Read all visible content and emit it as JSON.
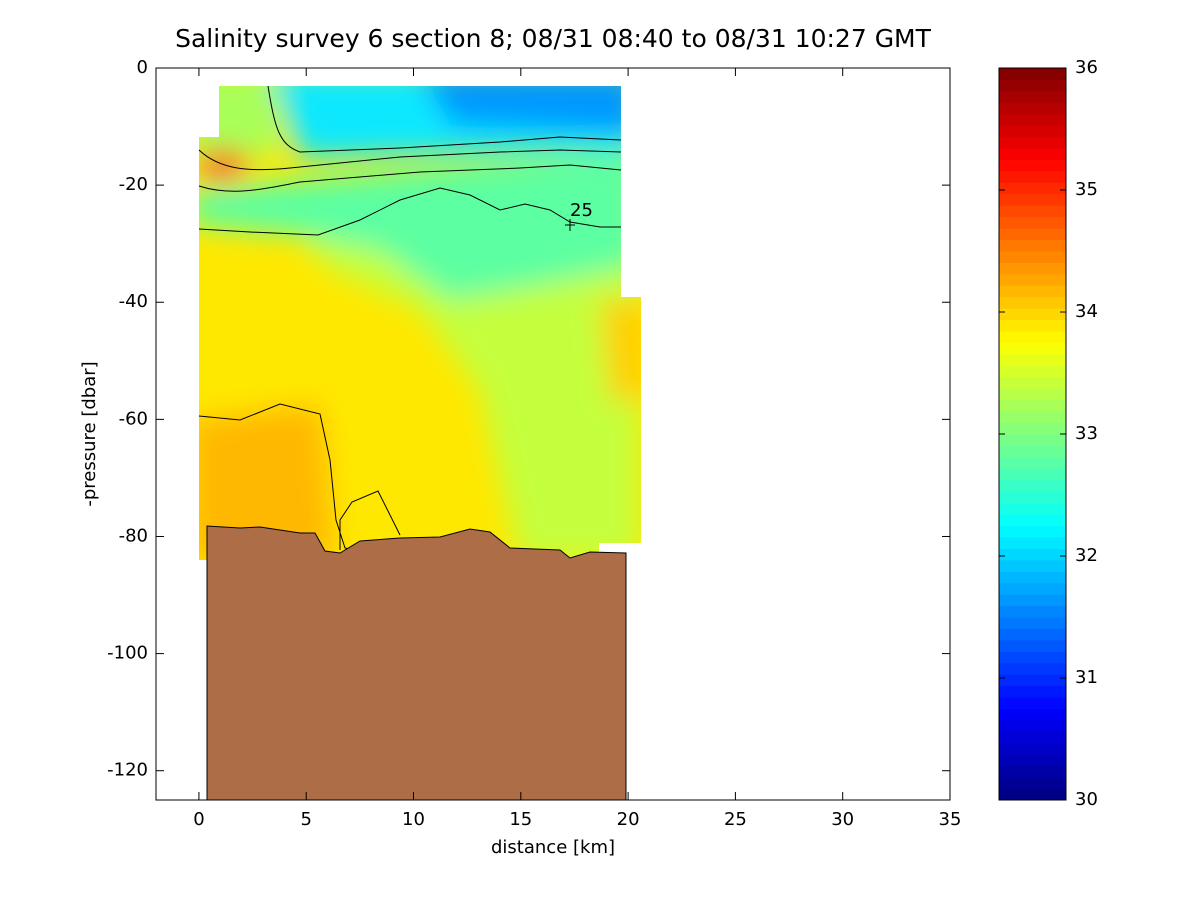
{
  "chart_data": {
    "type": "contour",
    "title": "Salinity survey 6 section 8; 08/31 08:40 to 08/31 10:27 GMT",
    "xlabel": "distance [km]",
    "ylabel": "-pressure [dbar]",
    "xlim": [
      -2,
      35
    ],
    "ylim": [
      -125,
      0
    ],
    "xticks": [
      0,
      5,
      10,
      15,
      20,
      25,
      30,
      35
    ],
    "yticks": [
      -120,
      -100,
      -80,
      -60,
      -40,
      -20,
      0
    ],
    "colorbar": {
      "colormap": "jet",
      "clim": [
        30,
        36
      ],
      "ticks": [
        30,
        31,
        32,
        33,
        34,
        35,
        36
      ]
    },
    "contour_labels": [
      "25"
    ]
  }
}
